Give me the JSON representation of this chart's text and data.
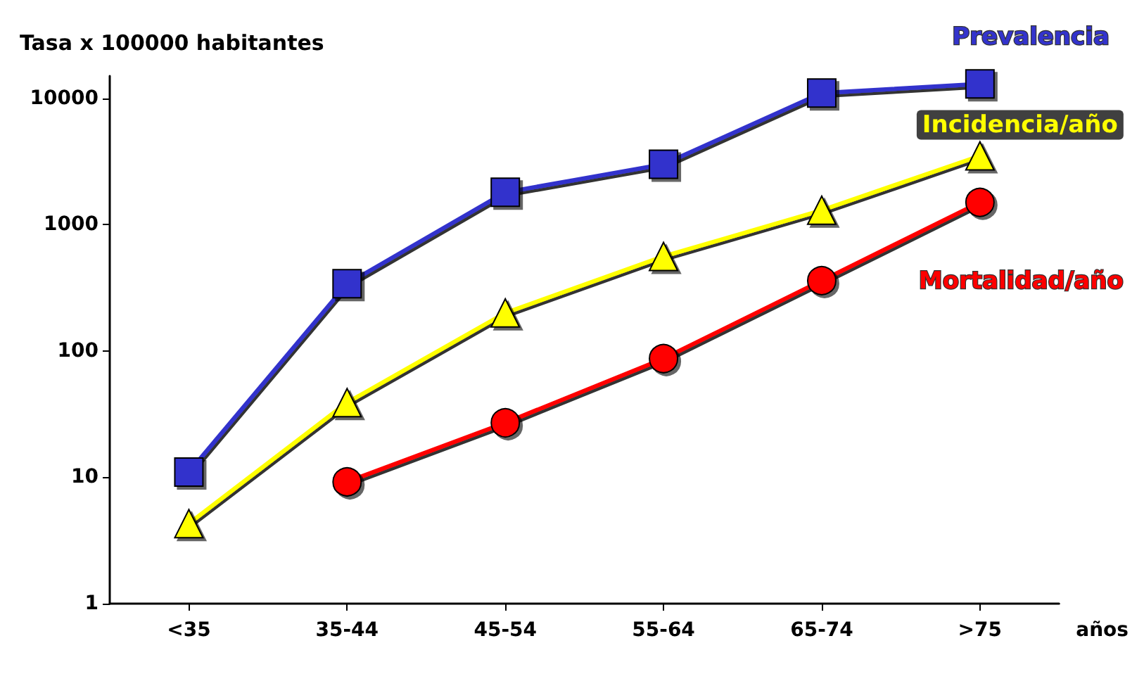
{
  "chart_data": {
    "type": "line",
    "ylabel": "Tasa x 100000 habitantes",
    "xlabel": "años",
    "categories": [
      "<35",
      "35-44",
      "45-54",
      "55-64",
      "65-74",
      ">75"
    ],
    "log": "y",
    "ylim": [
      1,
      15000
    ],
    "yticks": [
      1,
      10,
      100,
      1000,
      10000
    ],
    "grid": false,
    "series": [
      {
        "name": "Prevalencia",
        "color": "#3333cc",
        "marker": "square",
        "values": [
          11,
          340,
          1800,
          3000,
          11000,
          13000
        ]
      },
      {
        "name": "Incidencia/año",
        "color": "#ffff00",
        "marker": "triangle",
        "values": [
          4.3,
          39,
          200,
          560,
          1300,
          3500
        ]
      },
      {
        "name": "Mortalidad/año",
        "color": "#ff0000",
        "marker": "circle",
        "values": [
          null,
          9.2,
          27,
          87,
          360,
          1500
        ]
      }
    ]
  }
}
